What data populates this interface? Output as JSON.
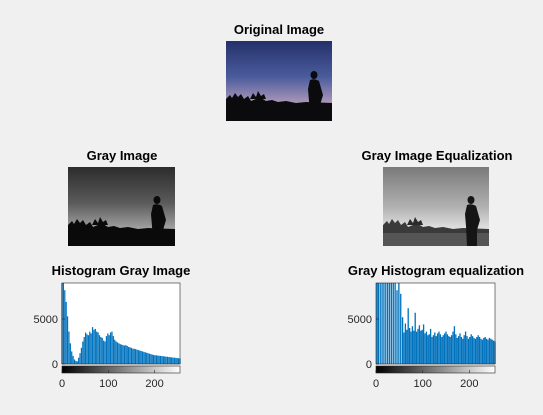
{
  "figure": {
    "titles": {
      "original": "Original Image",
      "gray": "Gray Image",
      "gray_eq": "Gray Image Equalization",
      "hist_gray": "Histogram Gray Image",
      "hist_eq": "Gray Histogram equalization"
    }
  },
  "chart_data": [
    {
      "type": "bar",
      "title": "Histogram Gray Image",
      "xlabel": "",
      "ylabel": "",
      "xlim": [
        0,
        255
      ],
      "ylim": [
        0,
        9000
      ],
      "x_ticks": [
        "0",
        "100",
        "200"
      ],
      "y_ticks": [
        "0",
        "5000"
      ],
      "color": "#0072bd",
      "x": [
        0,
        3,
        6,
        9,
        12,
        15,
        18,
        21,
        24,
        27,
        30,
        33,
        36,
        39,
        42,
        45,
        48,
        51,
        54,
        57,
        60,
        63,
        66,
        69,
        72,
        75,
        78,
        81,
        84,
        87,
        90,
        93,
        96,
        99,
        102,
        105,
        108,
        111,
        114,
        117,
        120,
        123,
        126,
        129,
        132,
        135,
        138,
        141,
        144,
        147,
        150,
        153,
        156,
        159,
        162,
        165,
        168,
        171,
        174,
        177,
        180,
        183,
        186,
        189,
        192,
        195,
        198,
        201,
        204,
        207,
        210,
        213,
        216,
        219,
        222,
        225,
        228,
        231,
        234,
        237,
        240,
        243,
        246,
        249,
        252,
        255
      ],
      "values": [
        9000,
        9000,
        8200,
        6900,
        5300,
        3600,
        2300,
        1400,
        900,
        500,
        350,
        300,
        700,
        1200,
        1800,
        2500,
        3000,
        3500,
        3300,
        3200,
        3600,
        3400,
        4100,
        3800,
        3900,
        3600,
        3500,
        3200,
        3000,
        2900,
        2600,
        2500,
        3100,
        3400,
        3200,
        3500,
        3600,
        3100,
        2700,
        2500,
        2400,
        2300,
        2200,
        2150,
        2100,
        2050,
        2100,
        2000,
        1900,
        1850,
        1800,
        1700,
        1700,
        1650,
        1600,
        1550,
        1500,
        1450,
        1400,
        1350,
        1300,
        1250,
        1200,
        1150,
        1100,
        1050,
        1000,
        980,
        960,
        940,
        920,
        900,
        880,
        860,
        840,
        820,
        800,
        780,
        760,
        740,
        720,
        700,
        680,
        660,
        640,
        620
      ]
    },
    {
      "type": "bar",
      "title": "Gray Histogram equalization",
      "xlabel": "",
      "ylabel": "",
      "xlim": [
        0,
        255
      ],
      "ylim": [
        0,
        9000
      ],
      "x_ticks": [
        "0",
        "100",
        "200"
      ],
      "y_ticks": [
        "0",
        "5000"
      ],
      "color": "#0072bd",
      "x": [
        2,
        5,
        9,
        13,
        17,
        21,
        25,
        29,
        33,
        37,
        41,
        45,
        49,
        53,
        57,
        60,
        63,
        66,
        69,
        72,
        75,
        78,
        81,
        84,
        87,
        90,
        93,
        96,
        99,
        102,
        105,
        108,
        111,
        114,
        117,
        120,
        123,
        126,
        129,
        132,
        135,
        138,
        141,
        144,
        147,
        150,
        153,
        156,
        159,
        162,
        165,
        168,
        171,
        174,
        177,
        180,
        183,
        186,
        189,
        192,
        195,
        198,
        201,
        204,
        207,
        210,
        213,
        216,
        219,
        222,
        225,
        228,
        231,
        234,
        237,
        240,
        243,
        246,
        249,
        252,
        255
      ],
      "values": [
        9000,
        9000,
        9000,
        9000,
        9000,
        9000,
        9000,
        9000,
        9000,
        9000,
        9000,
        8200,
        9000,
        7800,
        5200,
        3500,
        4500,
        3800,
        6200,
        4000,
        3600,
        4200,
        3700,
        5700,
        3600,
        3900,
        4300,
        3700,
        3800,
        4400,
        3400,
        3600,
        3200,
        3300,
        3900,
        3000,
        3200,
        3500,
        3100,
        3400,
        3600,
        3300,
        3000,
        3200,
        3400,
        3600,
        3300,
        3100,
        3000,
        3200,
        3600,
        4200,
        3300,
        2900,
        3100,
        3400,
        3000,
        2800,
        3200,
        3600,
        3100,
        2800,
        3000,
        3300,
        3100,
        2900,
        2800,
        3000,
        3200,
        3000,
        2800,
        2700,
        2900,
        3000,
        2800,
        2700,
        2900,
        2800,
        2700,
        2600,
        2500
      ]
    }
  ]
}
